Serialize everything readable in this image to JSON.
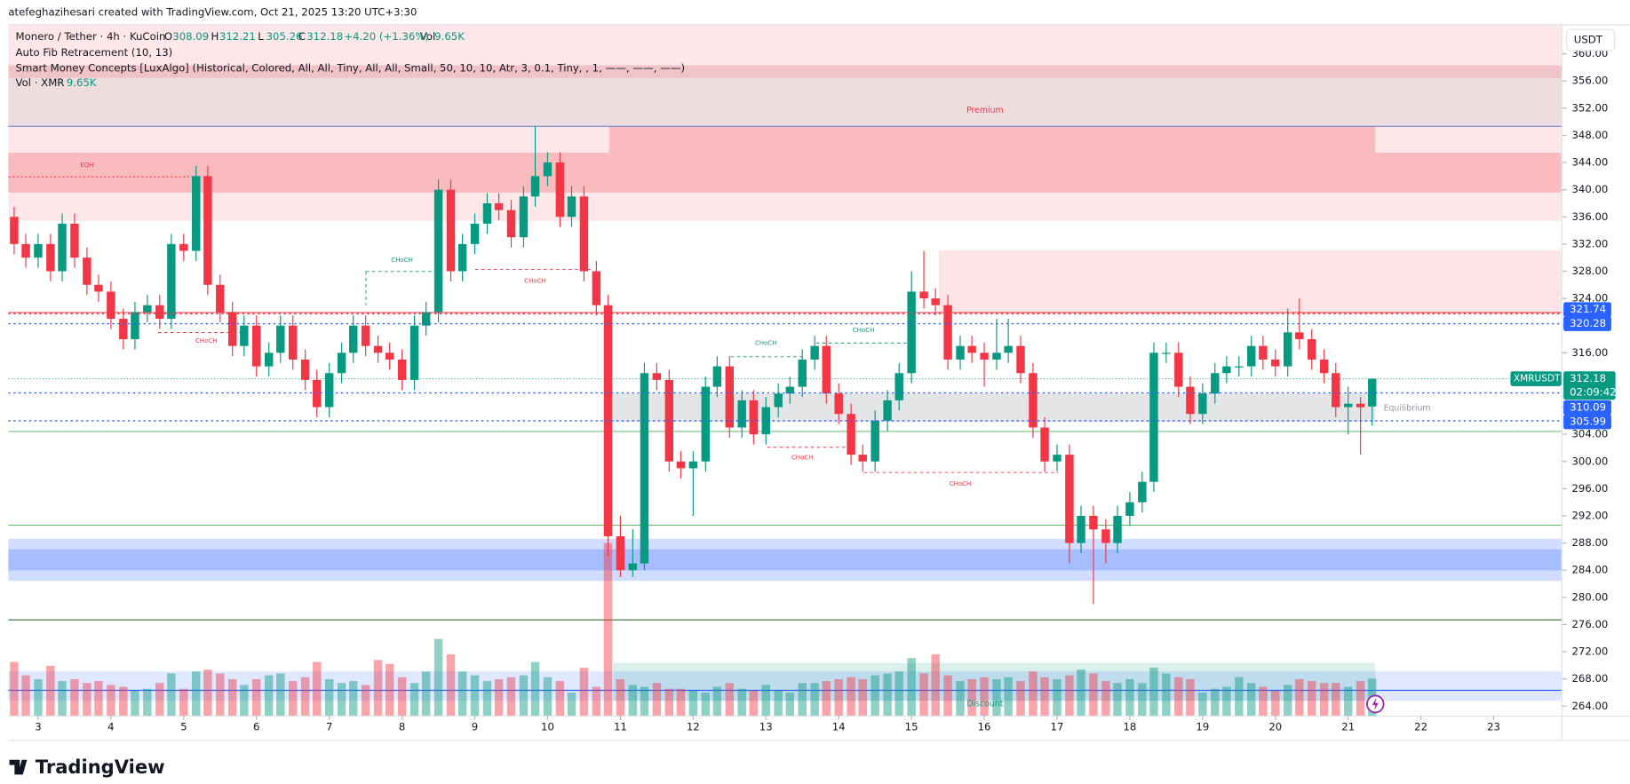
{
  "header": {
    "credit": "atefeghazihesari created with TradingView.com, Oct 21, 2025 13:20 UTC+3:30",
    "symbol": "Monero / Tether · 4h · KuCoin",
    "ohlc_labels": [
      "O",
      "H",
      "L",
      "C"
    ],
    "change": "+4.20 (+1.36%)",
    "vol_label": "Vol",
    "vol_value": "9.65K",
    "indicators": [
      "Auto Fib Retracement (10, 13)",
      "Smart Money Concepts [LuxAlgo] (Historical, Colored, All, All, Tiny, All, All, Small, 50, 10, 10, Atr, 3, 0.1, Tiny, , 1, ——, ——, ——)"
    ],
    "vol_indicator": "Vol · XMR",
    "currency": "USDT",
    "ticker": "XMRUSDT",
    "countdown": "02:09:42",
    "brand": "TradingView"
  },
  "chart_data": {
    "type": "candlestick",
    "grid": false,
    "up_color": "#089981",
    "down_color": "#f23645",
    "xlim": [
      2.59,
      23.93
    ],
    "ylim": [
      262.6,
      364.2
    ],
    "y2lim": [
      0,
      180000
    ],
    "xticks": [
      3,
      4,
      5,
      6,
      7,
      8,
      9,
      10,
      11,
      12,
      13,
      14,
      15,
      16,
      17,
      18,
      19,
      20,
      21,
      22,
      23
    ],
    "yticks": [
      {
        "value": 264,
        "label": "264.00"
      },
      {
        "value": 268,
        "label": "268.00"
      },
      {
        "value": 272,
        "label": "272.00"
      },
      {
        "value": 276,
        "label": "276.00"
      },
      {
        "value": 280,
        "label": "280.00"
      },
      {
        "value": 284,
        "label": "284.00"
      },
      {
        "value": 288,
        "label": "288.00"
      },
      {
        "value": 292,
        "label": "292.00"
      },
      {
        "value": 296,
        "label": "296.00"
      },
      {
        "value": 300,
        "label": "300.00"
      },
      {
        "value": 304,
        "label": "304.00"
      },
      {
        "value": 308,
        "label": "308.00"
      },
      {
        "value": 312,
        "label": "312.00"
      },
      {
        "value": 316,
        "label": "316.00"
      },
      {
        "value": 320,
        "label": "320.00"
      },
      {
        "value": 324,
        "label": "324.00"
      },
      {
        "value": 328,
        "label": "328.00"
      },
      {
        "value": 332,
        "label": "332.00"
      },
      {
        "value": 336,
        "label": "336.00"
      },
      {
        "value": 340,
        "label": "340.00"
      },
      {
        "value": 344,
        "label": "344.00"
      },
      {
        "value": 348,
        "label": "348.00"
      },
      {
        "value": 352,
        "label": "352.00"
      },
      {
        "value": 356,
        "label": "356.00"
      },
      {
        "value": 360,
        "label": "360.00"
      }
    ],
    "x": [
      2.67,
      2.83,
      3,
      3.17,
      3.33,
      3.5,
      3.67,
      3.83,
      4,
      4.17,
      4.33,
      4.5,
      4.67,
      4.83,
      5,
      5.17,
      5.33,
      5.5,
      5.67,
      5.83,
      6,
      6.17,
      6.33,
      6.5,
      6.67,
      6.83,
      7,
      7.17,
      7.33,
      7.5,
      7.67,
      7.83,
      8,
      8.17,
      8.33,
      8.5,
      8.67,
      8.83,
      9,
      9.17,
      9.33,
      9.5,
      9.67,
      9.83,
      10,
      10.17,
      10.33,
      10.5,
      10.67,
      10.83,
      11,
      11.17,
      11.33,
      11.5,
      11.67,
      11.83,
      12,
      12.17,
      12.33,
      12.5,
      12.67,
      12.83,
      13,
      13.17,
      13.33,
      13.5,
      13.67,
      13.83,
      14,
      14.17,
      14.33,
      14.5,
      14.67,
      14.83,
      15,
      15.17,
      15.33,
      15.5,
      15.67,
      15.83,
      16,
      16.17,
      16.33,
      16.5,
      16.67,
      16.83,
      17,
      17.17,
      17.33,
      17.5,
      17.67,
      17.83,
      18,
      18.17,
      18.33,
      18.5,
      18.67,
      18.83,
      19,
      19.17,
      19.33,
      19.5,
      19.67,
      19.83,
      20,
      20.17,
      20.33,
      20.5,
      20.67,
      20.83,
      21,
      21.17,
      21.33
    ],
    "open": [
      336,
      332,
      330,
      332,
      328,
      335,
      330,
      326,
      325,
      321,
      318,
      322,
      323,
      321,
      332,
      331,
      342,
      326,
      322,
      317,
      320,
      314,
      316,
      320,
      315,
      312,
      308,
      313,
      316,
      320,
      317,
      316,
      315,
      312,
      320,
      322,
      340,
      328,
      332,
      335,
      338,
      337,
      333,
      339,
      342,
      344,
      336,
      339,
      328,
      323,
      289,
      284,
      285,
      313,
      312,
      300,
      299,
      300,
      311,
      314,
      305,
      309,
      304,
      308,
      310,
      311,
      315,
      317,
      310,
      307,
      301,
      300,
      306,
      309,
      313,
      325,
      324,
      323,
      315,
      317,
      316,
      315,
      316,
      317,
      313,
      305,
      300,
      301,
      288,
      292,
      290,
      288,
      292,
      294,
      297,
      316,
      316,
      311,
      307,
      310,
      313,
      314,
      314,
      317,
      315,
      314,
      319,
      318,
      315,
      313,
      308,
      308.5,
      308.09
    ],
    "high": [
      337.5,
      333.5,
      333.5,
      333.5,
      336.5,
      336.5,
      331.5,
      327.5,
      326.5,
      322.5,
      323.5,
      324.5,
      324.5,
      333.5,
      333.5,
      343.5,
      343.5,
      327.5,
      323.5,
      321.5,
      321.5,
      317.5,
      321.5,
      321.5,
      316.5,
      313.5,
      314.5,
      317.5,
      321.5,
      321.5,
      318.5,
      317.5,
      316.5,
      321.5,
      323.5,
      341.5,
      341.5,
      333.5,
      336.5,
      339.5,
      339.5,
      338.5,
      340.5,
      349.3,
      345.5,
      345.5,
      340.5,
      340.5,
      329.5,
      324.5,
      292,
      290,
      314.5,
      314.5,
      313.5,
      301.5,
      301.5,
      312.5,
      315.5,
      315.5,
      310.5,
      310.5,
      309.5,
      311.5,
      312.5,
      316.5,
      318.5,
      318.5,
      311.5,
      308.5,
      302.5,
      307.5,
      310.5,
      314.5,
      328,
      331,
      325.5,
      324.5,
      318.5,
      318.5,
      317.5,
      321,
      321,
      318.5,
      314.5,
      306.5,
      302.5,
      302.5,
      293.5,
      293.5,
      291.5,
      293.5,
      295.5,
      298.5,
      317.5,
      317.5,
      317.5,
      312.5,
      311.5,
      314.5,
      315.5,
      315.5,
      318.5,
      318.5,
      316.5,
      322.5,
      324,
      319.5,
      316.5,
      314.5,
      311,
      309.5,
      312.21
    ],
    "low": [
      330.5,
      328.5,
      328.5,
      326.5,
      326.5,
      328.5,
      324.5,
      323.5,
      319.5,
      316.5,
      316.5,
      320.5,
      319.5,
      319.5,
      329.5,
      329.5,
      324.5,
      320.5,
      315.5,
      315.5,
      312.5,
      312.5,
      314.5,
      313.5,
      310.5,
      306.5,
      306.5,
      311.5,
      314.5,
      315.5,
      314.5,
      313.5,
      310.5,
      310.5,
      318.5,
      320.5,
      326.5,
      326.5,
      330.5,
      333.5,
      335.5,
      331.5,
      331.5,
      337.5,
      340.5,
      334.5,
      334.5,
      326.5,
      321.5,
      286,
      283,
      283,
      284,
      310.5,
      298.5,
      297.5,
      292,
      298.5,
      309.5,
      303.5,
      303.5,
      302.5,
      302.5,
      306.5,
      308.5,
      309.5,
      313.5,
      308.5,
      305.5,
      299.5,
      298.5,
      298.5,
      304.5,
      307.5,
      311.5,
      322.5,
      321.5,
      313.5,
      313.5,
      314.5,
      311,
      313.5,
      314.5,
      311.5,
      303.5,
      298.5,
      298.5,
      285,
      286.5,
      279,
      285,
      286.5,
      290.5,
      292.5,
      295.5,
      314.5,
      309.5,
      305.5,
      305.5,
      308.5,
      311.5,
      312.5,
      312.5,
      313.5,
      312.5,
      312.5,
      316.5,
      313.5,
      311.5,
      306.5,
      304,
      301,
      305.26
    ],
    "close": [
      332,
      330,
      332,
      328,
      335,
      330,
      326,
      325,
      321,
      318,
      322,
      323,
      321,
      332,
      331,
      342,
      326,
      322,
      317,
      320,
      314,
      316,
      320,
      315,
      312,
      308,
      313,
      316,
      320,
      317,
      316,
      315,
      312,
      320,
      322,
      340,
      328,
      332,
      335,
      338,
      337,
      333,
      339,
      342,
      344,
      336,
      339,
      328,
      323,
      289,
      284,
      285,
      313,
      312,
      300,
      299,
      300,
      311,
      314,
      305,
      309,
      304,
      308,
      310,
      311,
      315,
      317,
      310,
      307,
      301,
      300,
      306,
      309,
      313,
      325,
      324,
      323,
      315,
      317,
      316,
      315,
      316,
      317,
      313,
      305,
      300,
      301,
      288,
      292,
      290,
      288,
      292,
      294,
      297,
      316,
      316,
      311,
      307,
      310,
      313,
      314,
      314,
      317,
      315,
      314,
      319,
      318,
      315,
      313,
      308,
      308.5,
      307.98,
      312.18
    ],
    "volume": [
      14000,
      10500,
      9500,
      13000,
      9000,
      9500,
      8500,
      9000,
      8000,
      7500,
      6500,
      7000,
      8500,
      11000,
      7000,
      11500,
      12000,
      11000,
      9500,
      8000,
      9500,
      10500,
      11000,
      9000,
      10000,
      14000,
      9500,
      8500,
      9000,
      8000,
      14500,
      13500,
      10000,
      8500,
      11500,
      20000,
      16000,
      11500,
      10500,
      9000,
      9500,
      10000,
      10500,
      14000,
      10000,
      9000,
      6000,
      12500,
      7500,
      45000,
      9500,
      8000,
      7500,
      8500,
      7000,
      7000,
      6500,
      6000,
      7500,
      8500,
      7000,
      6500,
      8000,
      6500,
      6000,
      8500,
      8500,
      9000,
      9500,
      10000,
      9500,
      10500,
      11000,
      11500,
      15000,
      11000,
      16000,
      10500,
      9000,
      9500,
      10000,
      9500,
      10000,
      9000,
      11500,
      10000,
      9500,
      10500,
      12000,
      11000,
      9000,
      8500,
      9500,
      8500,
      12500,
      11000,
      10000,
      9500,
      6000,
      7000,
      7500,
      10000,
      8500,
      7500,
      6500,
      8000,
      9500,
      9000,
      8500,
      8500,
      7500,
      9000,
      9650
    ],
    "price_labels": [
      {
        "value": 321.74,
        "color": "#2962ff",
        "line_color": "#f23645"
      },
      {
        "value": 320.28,
        "color": "#2962ff",
        "line_color": "#2962ff"
      },
      {
        "value": 310.09,
        "color": "#2962ff",
        "line_color": "#2962ff"
      },
      {
        "value": 305.99,
        "color": "#2962ff",
        "line_color": "#2962ff"
      }
    ],
    "annotations": [
      {
        "text": "Premium",
        "color": "#f23645",
        "x": 16.01,
        "y": 351.66
      },
      {
        "text": "Discount",
        "color": "#089981",
        "x": 16.01,
        "y": 264.31
      },
      {
        "text": "Equilibrium",
        "color": "#9598a1",
        "x": 21.81,
        "y": 307.83
      },
      {
        "text": "EQH",
        "color": "#f23645",
        "x": 3.67,
        "y": 343.6
      },
      {
        "text": "CHoCH",
        "color": "#089981",
        "x": 8.0,
        "y": 329.66
      },
      {
        "text": "CHoCH",
        "color": "#f23645",
        "x": 9.83,
        "y": 326.57
      },
      {
        "text": "CHoCH",
        "color": "#f23645",
        "x": 5.31,
        "y": 317.74
      },
      {
        "text": "CHoCH",
        "color": "#089981",
        "x": 13.0,
        "y": 317.43
      },
      {
        "text": "CHoCH",
        "color": "#089981",
        "x": 14.34,
        "y": 319.28
      },
      {
        "text": "CHoCH",
        "color": "#f23645",
        "x": 13.5,
        "y": 300.55
      },
      {
        "text": "CHoCH",
        "color": "#f23645",
        "x": 15.67,
        "y": 296.68
      }
    ]
  }
}
